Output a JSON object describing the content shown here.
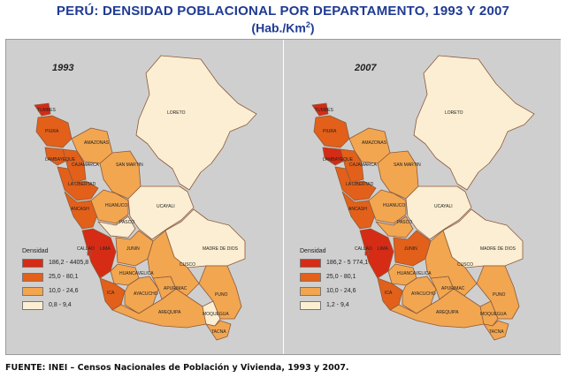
{
  "title": "PERÚ: DENSIDAD POBLACIONAL POR DEPARTAMENTO, 1993 Y 2007",
  "subtitle_main": "(Hab./Km",
  "subtitle_sup": "2",
  "subtitle_close": ")",
  "footer": "FUENTE: INEI – Censos Nacionales de Población y Vivienda, 1993 y 2007.",
  "colors": {
    "c1": "#d62b14",
    "c2": "#e2601a",
    "c3": "#f2a650",
    "c4": "#fbeed2",
    "border": "#8c5a3c",
    "bg": "#cfcfcf"
  },
  "maps": [
    {
      "year": "1993",
      "legend_title": "Densidad",
      "legend": [
        {
          "label": "186,2 - 4405,8",
          "color": "#d62b14"
        },
        {
          "label": "25,0 - 80,1",
          "color": "#e2601a"
        },
        {
          "label": "10,0 - 24,6",
          "color": "#f2a650"
        },
        {
          "label": "0,8 - 9,4",
          "color": "#fbeed2"
        }
      ],
      "departments": {
        "TUMBES": "#d62b14",
        "PIURA": "#e2601a",
        "LAMBAYEQUE": "#e2601a",
        "CAJAMARCA": "#e2601a",
        "LA LIBERTAD": "#e2601a",
        "AMAZONAS": "#f2a650",
        "SAN MARTIN": "#f2a650",
        "LORETO": "#fbeed2",
        "ANCASH": "#e2601a",
        "HUANUCO": "#f2a650",
        "PASCO": "#fbeed2",
        "UCAYALI": "#fbeed2",
        "LIMA": "#d62b14",
        "CALLAO": "#d62b14",
        "JUNIN": "#f2a650",
        "MADRE DE DIOS": "#fbeed2",
        "HUANCAVELICA": "#f2a650",
        "ICA": "#e2601a",
        "AYACUCHO": "#f2a650",
        "APURIMAC": "#f2a650",
        "CUSCO": "#f2a650",
        "PUNO": "#f2a650",
        "AREQUIPA": "#f2a650",
        "MOQUEGUA": "#fbeed2",
        "TACNA": "#f2a650"
      }
    },
    {
      "year": "2007",
      "legend_title": "Densidad",
      "legend": [
        {
          "label": "186,2 - 5 774,1",
          "color": "#d62b14"
        },
        {
          "label": "25,0 - 80,1",
          "color": "#e2601a"
        },
        {
          "label": "10,0 - 24,6",
          "color": "#f2a650"
        },
        {
          "label": "1,2 - 9,4",
          "color": "#fbeed2"
        }
      ],
      "departments": {
        "TUMBES": "#d62b14",
        "PIURA": "#e2601a",
        "LAMBAYEQUE": "#d62b14",
        "CAJAMARCA": "#e2601a",
        "LA LIBERTAD": "#e2601a",
        "AMAZONAS": "#f2a650",
        "SAN MARTIN": "#f2a650",
        "LORETO": "#fbeed2",
        "ANCASH": "#e2601a",
        "HUANUCO": "#f2a650",
        "PASCO": "#f2a650",
        "UCAYALI": "#fbeed2",
        "LIMA": "#d62b14",
        "CALLAO": "#d62b14",
        "JUNIN": "#e2601a",
        "MADRE DE DIOS": "#fbeed2",
        "HUANCAVELICA": "#f2a650",
        "ICA": "#e2601a",
        "AYACUCHO": "#f2a650",
        "APURIMAC": "#f2a650",
        "CUSCO": "#f2a650",
        "PUNO": "#f2a650",
        "AREQUIPA": "#f2a650",
        "MOQUEGUA": "#f2a650",
        "TACNA": "#f2a650"
      }
    }
  ]
}
